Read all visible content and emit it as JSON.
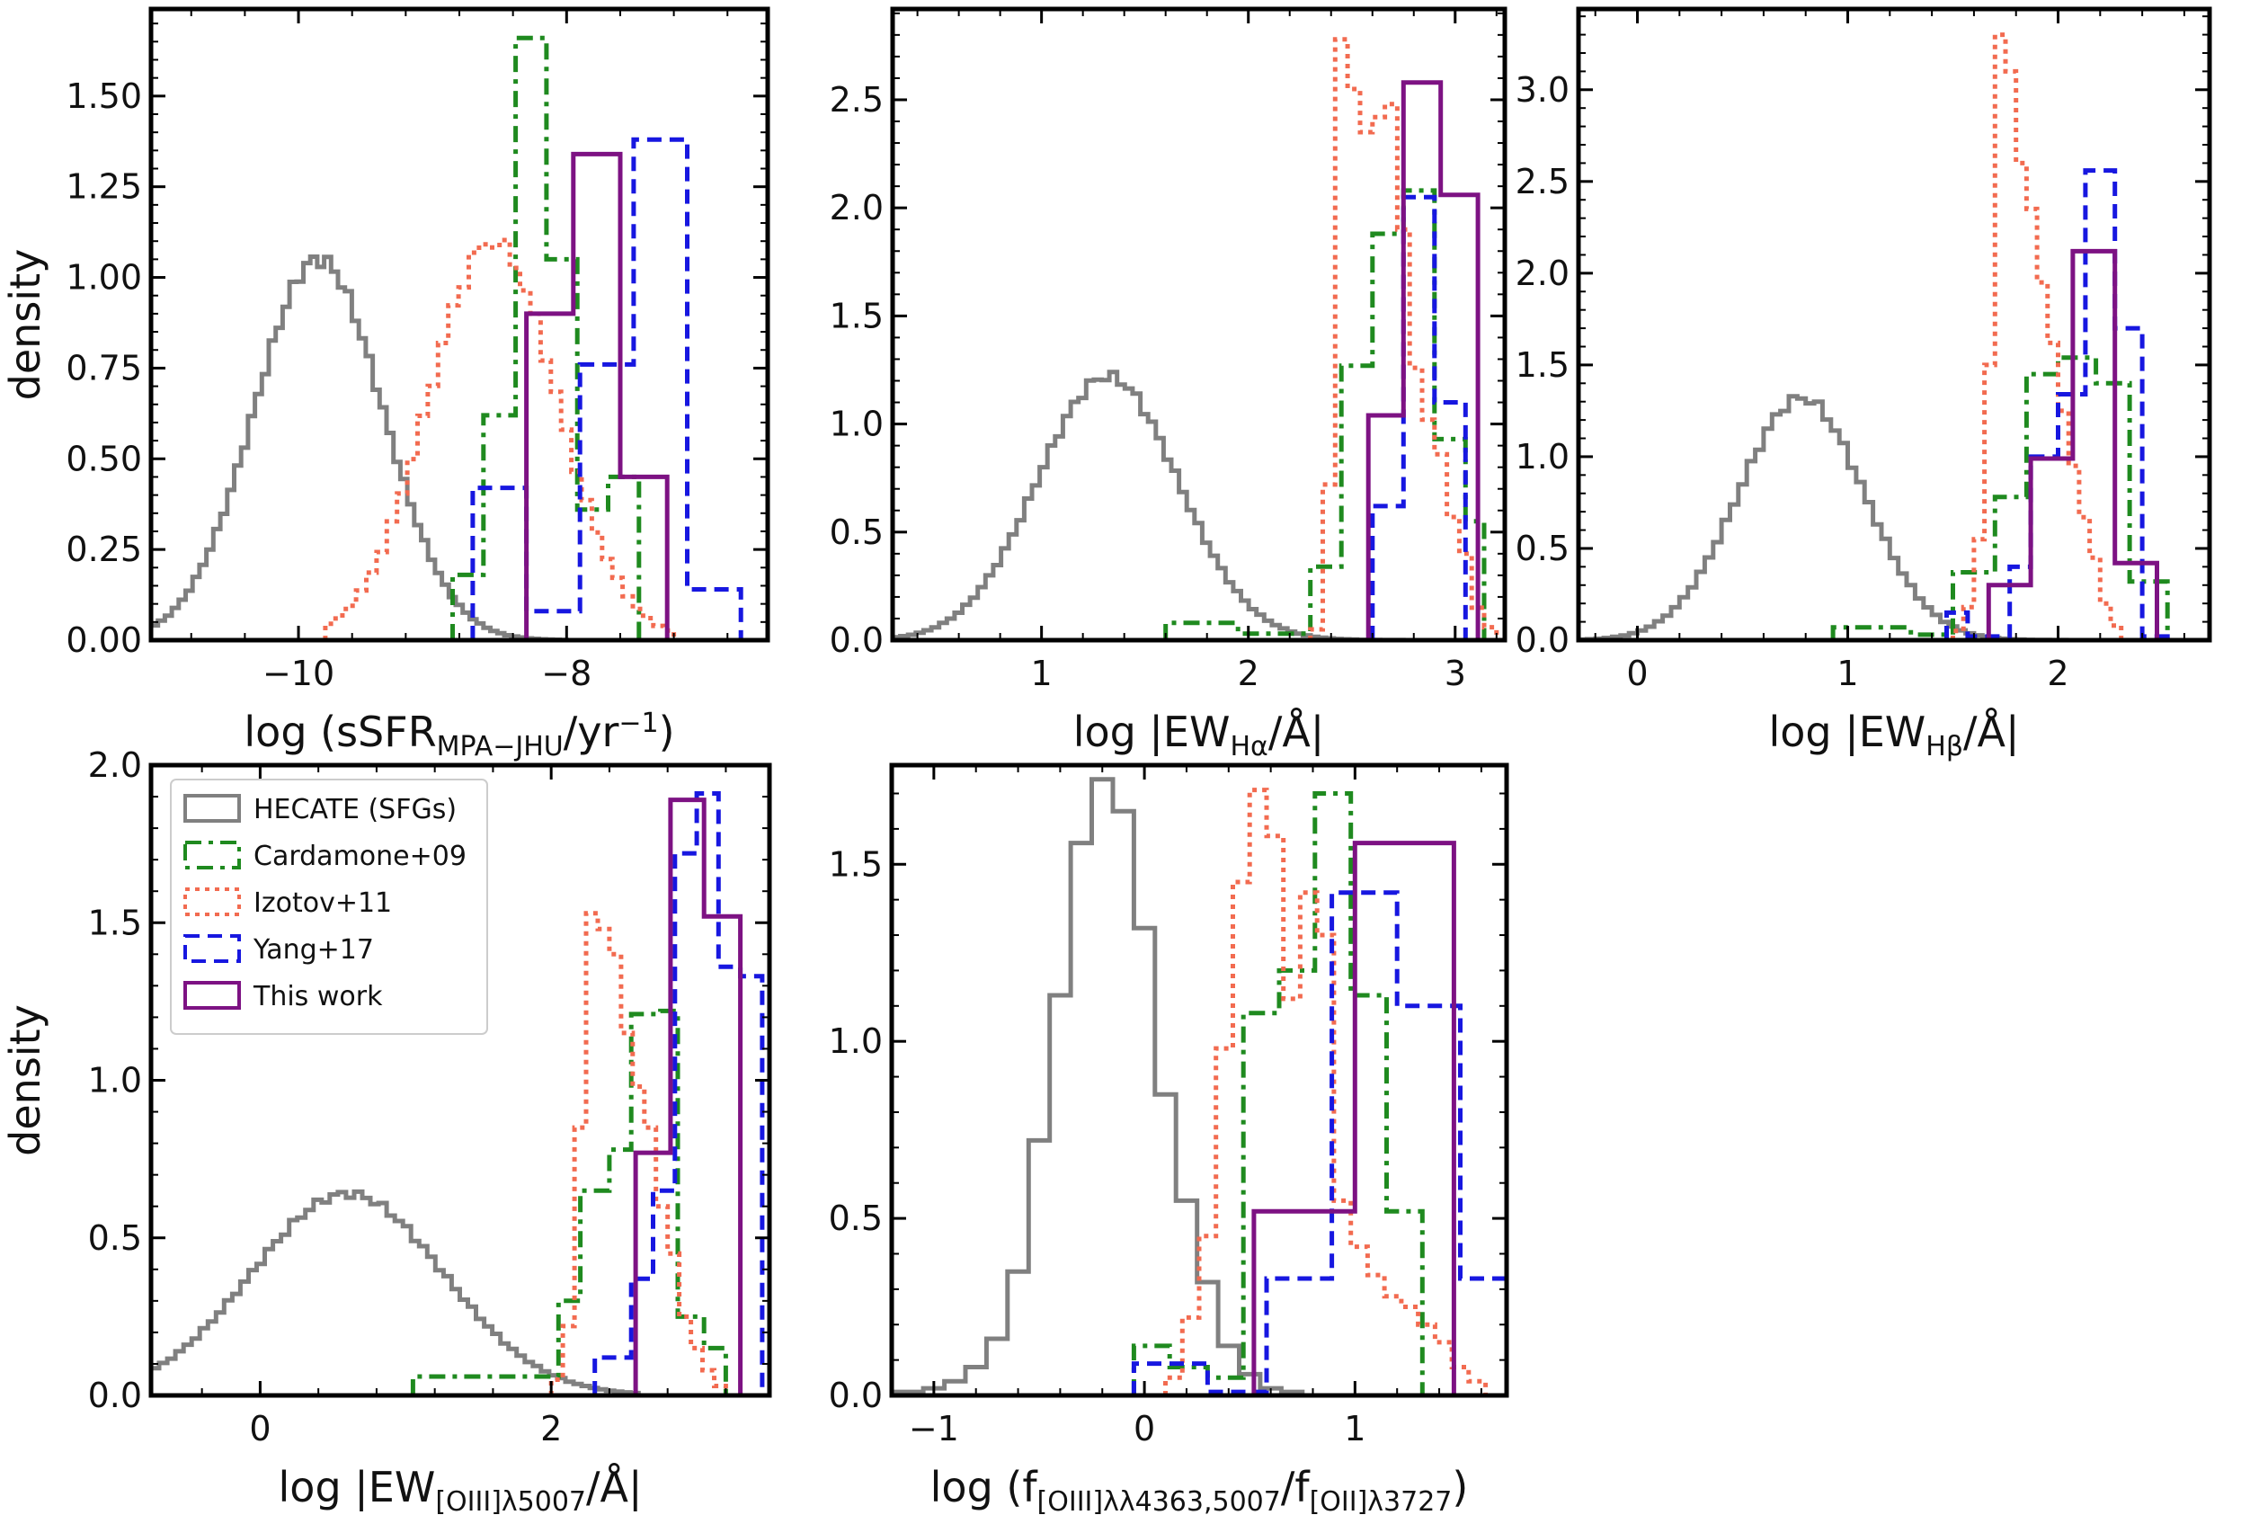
{
  "chart_data": [
    {
      "type": "histogram",
      "panel": "top-left",
      "xlabel": "log (sSFR_MPA−JHU/yr^−1)",
      "ylabel": "density",
      "xlim": [
        -11.1,
        -6.5
      ],
      "ylim": [
        0.0,
        1.74
      ],
      "xticks": [
        -10,
        -8
      ],
      "xtick_labels": [
        "−10",
        "−8"
      ],
      "yticks": [
        0.0,
        0.25,
        0.5,
        0.75,
        1.0,
        1.25,
        1.5
      ],
      "ytick_labels": [
        "0.00",
        "0.25",
        "0.50",
        "0.75",
        "1.00",
        "1.25",
        "1.50"
      ],
      "series": [
        {
          "name": "HECATE (SFGs)",
          "kind": "gaussian",
          "center": -9.85,
          "sigma": 0.48,
          "peak": 1.05,
          "lo": -11.1,
          "hi": -8.0,
          "bins": 60
        },
        {
          "name": "Cardamone+09",
          "kind": "bins",
          "edges": [
            -8.85,
            -8.62,
            -8.38,
            -8.15,
            -7.92,
            -7.69,
            -7.46
          ],
          "values": [
            0.18,
            0.62,
            1.66,
            1.05,
            0.36,
            0.45
          ]
        },
        {
          "name": "Izotov+11",
          "kind": "gaussian",
          "center": -8.55,
          "sigma": 0.48,
          "peak": 1.1,
          "lo": -9.8,
          "hi": -7.2,
          "bins": 34
        },
        {
          "name": "Yang+17",
          "kind": "bins",
          "edges": [
            -8.7,
            -8.3,
            -7.9,
            -7.5,
            -7.1,
            -6.7
          ],
          "values": [
            0.42,
            0.08,
            0.76,
            1.38,
            0.14
          ]
        },
        {
          "name": "This work",
          "kind": "bins",
          "edges": [
            -8.3,
            -7.95,
            -7.6,
            -7.25
          ],
          "values": [
            0.9,
            1.34,
            0.45
          ]
        }
      ]
    },
    {
      "type": "histogram",
      "panel": "top-middle",
      "xlabel": "log |EW_Hα/Å|",
      "ylabel": "",
      "xlim": [
        0.28,
        3.24
      ],
      "ylim": [
        0.0,
        2.92
      ],
      "xticks": [
        1,
        2,
        3
      ],
      "xtick_labels": [
        "1",
        "2",
        "3"
      ],
      "yticks": [
        0.0,
        0.5,
        1.0,
        1.5,
        2.0,
        2.5
      ],
      "ytick_labels": [
        "0.0",
        "0.5",
        "1.0",
        "1.5",
        "2.0",
        "2.5"
      ],
      "series": [
        {
          "name": "HECATE (SFGs)",
          "kind": "gaussian",
          "center": 1.32,
          "sigma": 0.34,
          "peak": 1.22,
          "lo": 0.28,
          "hi": 2.9,
          "bins": 70
        },
        {
          "name": "Cardamone+09",
          "kind": "bins",
          "edges": [
            1.6,
            1.95,
            2.3,
            2.45,
            2.6,
            2.75,
            2.9,
            3.05,
            3.14
          ],
          "values": [
            0.08,
            0.03,
            0.34,
            1.27,
            1.88,
            2.08,
            0.93,
            0.55
          ]
        },
        {
          "name": "Izotov+11",
          "kind": "bins",
          "edges": [
            2.3,
            2.36,
            2.42,
            2.48,
            2.54,
            2.6,
            2.66,
            2.72,
            2.78,
            2.84,
            2.9,
            2.96,
            3.02,
            3.08,
            3.14,
            3.2
          ],
          "values": [
            0.05,
            0.72,
            2.78,
            2.55,
            2.35,
            2.42,
            2.48,
            1.9,
            1.26,
            1.02,
            0.86,
            0.57,
            0.4,
            0.15,
            0.06
          ]
        },
        {
          "name": "Yang+17",
          "kind": "bins",
          "edges": [
            2.6,
            2.75,
            2.9,
            3.05
          ],
          "values": [
            0.62,
            2.05,
            1.1
          ]
        },
        {
          "name": "This work",
          "kind": "bins",
          "edges": [
            2.58,
            2.75,
            2.93,
            3.11
          ],
          "values": [
            1.04,
            2.58,
            2.06
          ]
        }
      ]
    },
    {
      "type": "histogram",
      "panel": "top-right",
      "xlabel": "log |EW_Hβ/Å|",
      "ylabel": "",
      "xlim": [
        -0.28,
        2.72
      ],
      "ylim": [
        0.0,
        3.44
      ],
      "xticks": [
        0,
        1,
        2
      ],
      "xtick_labels": [
        "0",
        "1",
        "2"
      ],
      "yticks": [
        0.0,
        0.5,
        1.0,
        1.5,
        2.0,
        2.5,
        3.0
      ],
      "ytick_labels": [
        "0.0",
        "0.5",
        "1.0",
        "1.5",
        "2.0",
        "2.5",
        "3.0"
      ],
      "series": [
        {
          "name": "HECATE (SFGs)",
          "kind": "gaussian",
          "center": 0.78,
          "sigma": 0.3,
          "peak": 1.32,
          "lo": -0.28,
          "hi": 2.2,
          "bins": 62
        },
        {
          "name": "Cardamone+09",
          "kind": "bins",
          "edges": [
            0.93,
            1.3,
            1.5,
            1.7,
            1.85,
            2.0,
            2.18,
            2.34,
            2.52
          ],
          "values": [
            0.07,
            0.03,
            0.37,
            0.78,
            1.45,
            1.54,
            1.4,
            0.32
          ]
        },
        {
          "name": "Izotov+11",
          "kind": "bins",
          "edges": [
            1.5,
            1.55,
            1.6,
            1.65,
            1.7,
            1.75,
            1.8,
            1.85,
            1.9,
            1.95,
            2.0,
            2.05,
            2.1,
            2.15,
            2.2,
            2.25,
            2.3
          ],
          "values": [
            0.05,
            0.18,
            0.55,
            1.5,
            3.3,
            3.1,
            2.6,
            2.35,
            1.95,
            1.62,
            1.25,
            0.95,
            0.67,
            0.45,
            0.2,
            0.08
          ]
        },
        {
          "name": "Yang+17",
          "kind": "bins",
          "edges": [
            1.47,
            1.57,
            1.67,
            1.77,
            1.87,
            2.0,
            2.13,
            2.27,
            2.4,
            2.52
          ],
          "values": [
            0.15,
            0.02,
            0.02,
            0.4,
            1.0,
            1.34,
            2.56,
            1.7,
            0.02
          ]
        },
        {
          "name": "This work",
          "kind": "bins",
          "edges": [
            1.67,
            1.87,
            2.07,
            2.27,
            2.47
          ],
          "values": [
            0.3,
            0.99,
            2.12,
            0.42
          ]
        }
      ]
    },
    {
      "type": "histogram",
      "panel": "bottom-left",
      "xlabel": "log |EW_[OIII]λ5007/Å|",
      "ylabel": "density",
      "xlim": [
        -0.75,
        3.5
      ],
      "ylim": [
        0.0,
        2.0
      ],
      "xticks": [
        0,
        2
      ],
      "xtick_labels": [
        "0",
        "2"
      ],
      "yticks": [
        0.0,
        0.5,
        1.0,
        1.5,
        2.0
      ],
      "ytick_labels": [
        "0.0",
        "0.5",
        "1.0",
        "1.5",
        "2.0"
      ],
      "series": [
        {
          "name": "HECATE (SFGs)",
          "kind": "gaussian",
          "center": 0.6,
          "sigma": 0.66,
          "peak": 0.64,
          "lo": -0.75,
          "hi": 2.6,
          "bins": 60
        },
        {
          "name": "Cardamone+09",
          "kind": "bins",
          "edges": [
            1.05,
            1.5,
            2.05,
            2.2,
            2.4,
            2.55,
            2.75,
            2.87,
            3.05,
            3.2
          ],
          "values": [
            0.06,
            0.06,
            0.3,
            0.65,
            0.78,
            1.21,
            1.22,
            0.25,
            0.15
          ]
        },
        {
          "name": "Izotov+11",
          "kind": "bins",
          "edges": [
            2.0,
            2.08,
            2.16,
            2.24,
            2.32,
            2.4,
            2.48,
            2.56,
            2.64,
            2.72,
            2.8,
            2.88,
            2.96,
            3.04,
            3.12,
            3.2
          ],
          "values": [
            0.05,
            0.22,
            0.85,
            1.53,
            1.48,
            1.4,
            1.15,
            0.98,
            0.85,
            0.6,
            0.45,
            0.25,
            0.15,
            0.08,
            0.03
          ]
        },
        {
          "name": "Yang+17",
          "kind": "bins",
          "edges": [
            2.3,
            2.55,
            2.7,
            2.85,
            3.0,
            3.15,
            3.3,
            3.45
          ],
          "values": [
            0.12,
            0.37,
            0.65,
            1.72,
            1.91,
            1.36,
            1.33
          ]
        },
        {
          "name": "This work",
          "kind": "bins",
          "edges": [
            2.58,
            2.82,
            3.05,
            3.3
          ],
          "values": [
            0.77,
            1.89,
            1.52
          ]
        }
      ]
    },
    {
      "type": "histogram",
      "panel": "bottom-middle",
      "xlabel": "log (f_[OIII]λλ4363,5007/f_[OII]λ3727)",
      "ylabel": "",
      "xlim": [
        -1.2,
        1.72
      ],
      "ylim": [
        0.0,
        1.78
      ],
      "xticks": [
        -1,
        0,
        1
      ],
      "xtick_labels": [
        "−1",
        "0",
        "1"
      ],
      "yticks": [
        0.0,
        0.5,
        1.0,
        1.5
      ],
      "ytick_labels": [
        "0.0",
        "0.5",
        "1.0",
        "1.5"
      ],
      "series": [
        {
          "name": "HECATE (SFGs)",
          "kind": "bins",
          "edges": [
            -1.2,
            -1.05,
            -0.95,
            -0.85,
            -0.75,
            -0.65,
            -0.55,
            -0.45,
            -0.35,
            -0.25,
            -0.15,
            -0.05,
            0.05,
            0.15,
            0.25,
            0.35,
            0.45,
            0.55,
            0.65,
            0.75
          ],
          "values": [
            0.01,
            0.02,
            0.04,
            0.08,
            0.16,
            0.35,
            0.72,
            1.13,
            1.56,
            1.74,
            1.65,
            1.32,
            0.85,
            0.55,
            0.32,
            0.14,
            0.06,
            0.02,
            0.01
          ]
        },
        {
          "name": "Cardamone+09",
          "kind": "bins",
          "edges": [
            -0.05,
            0.12,
            0.3,
            0.47,
            0.64,
            0.81,
            0.98,
            1.15,
            1.32
          ],
          "values": [
            0.14,
            0.08,
            0.05,
            1.08,
            1.2,
            1.7,
            1.13,
            0.52
          ]
        },
        {
          "name": "Izotov+11",
          "kind": "bins",
          "edges": [
            0.1,
            0.18,
            0.26,
            0.34,
            0.42,
            0.5,
            0.58,
            0.66,
            0.74,
            0.82,
            0.9,
            0.98,
            1.06,
            1.14,
            1.22,
            1.3,
            1.38,
            1.46,
            1.54,
            1.62
          ],
          "values": [
            0.05,
            0.22,
            0.45,
            0.98,
            1.45,
            1.71,
            1.58,
            1.12,
            1.42,
            1.3,
            0.55,
            0.42,
            0.34,
            0.28,
            0.25,
            0.2,
            0.15,
            0.08,
            0.04
          ]
        },
        {
          "name": "Yang+17",
          "kind": "bins",
          "edges": [
            -0.05,
            0.3,
            0.58,
            0.89,
            1.2,
            1.5,
            1.72
          ],
          "values": [
            0.09,
            0.01,
            0.33,
            1.42,
            1.1,
            0.33
          ]
        },
        {
          "name": "This work",
          "kind": "bins",
          "edges": [
            0.52,
            1.0,
            1.47
          ],
          "values": [
            0.52,
            1.56
          ]
        }
      ]
    }
  ],
  "legend": {
    "placement": "top-left of bottom-left panel",
    "entries": [
      {
        "label": "HECATE (SFGs)",
        "color": "#808080",
        "dash": "solid"
      },
      {
        "label": "Cardamone+09",
        "color": "#1f8a1f",
        "dash": "dashdot"
      },
      {
        "label": "Izotov+11",
        "color": "#f26b50",
        "dash": "dotted"
      },
      {
        "label": "Yang+17",
        "color": "#1717e0",
        "dash": "dashed"
      },
      {
        "label": "This work",
        "color": "#7d1283",
        "dash": "solid"
      }
    ]
  },
  "colors": {
    "HECATE (SFGs)": "#808080",
    "Cardamone+09": "#1f8a1f",
    "Izotov+11": "#f26b50",
    "Yang+17": "#1717e0",
    "This work": "#7d1283"
  }
}
